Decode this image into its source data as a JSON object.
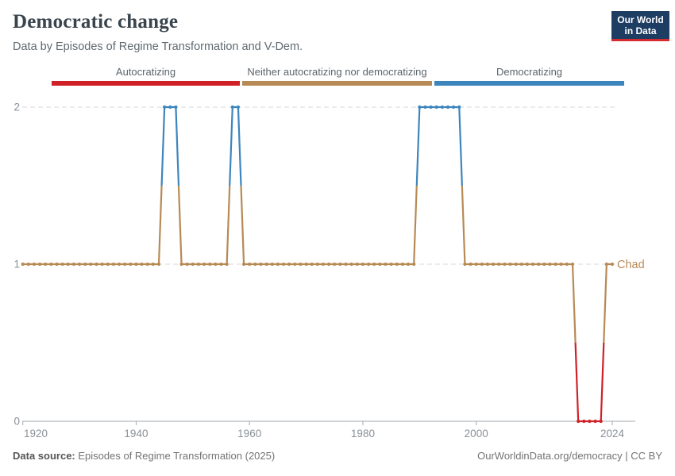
{
  "header": {
    "title": "Democratic change",
    "subtitle": "Data by Episodes of Regime Transformation and V-Dem."
  },
  "logo": {
    "line1": "Our World",
    "line2": "in Data",
    "bg_color": "#1d3d63",
    "accent_color": "#d42b2f"
  },
  "legend": {
    "items": [
      {
        "label": "Autocratizing",
        "color": "#d02128"
      },
      {
        "label": "Neither autocratizing nor democratizing",
        "color": "#b78a55"
      },
      {
        "label": "Democratizing",
        "color": "#3d85bd"
      }
    ]
  },
  "chart_data": {
    "type": "line",
    "title": "Democratic change",
    "series_name": "Chad",
    "end_label": "Chad",
    "x_range": [
      1920,
      2024
    ],
    "x_ticks": [
      1920,
      1940,
      1960,
      1980,
      2000,
      2024
    ],
    "y_ticks": [
      0,
      1,
      2
    ],
    "ylim": [
      0,
      2
    ],
    "grid": "dashed horizontal gridlines at y=1 and y=2, solid axis at y=0",
    "value_categories": {
      "0": "Autocratizing",
      "1": "Neither autocratizing nor democratizing",
      "2": "Democratizing"
    },
    "value_colors": {
      "0": "#d02128",
      "1": "#b78a55",
      "2": "#3d85bd"
    },
    "segments": [
      {
        "from": 1920,
        "to": 1944,
        "value": 1
      },
      {
        "from": 1945,
        "to": 1947,
        "value": 2
      },
      {
        "from": 1948,
        "to": 1956,
        "value": 1
      },
      {
        "from": 1957,
        "to": 1958,
        "value": 2
      },
      {
        "from": 1959,
        "to": 1989,
        "value": 1
      },
      {
        "from": 1990,
        "to": 1997,
        "value": 2
      },
      {
        "from": 1998,
        "to": 2017,
        "value": 1
      },
      {
        "from": 2018,
        "to": 2022,
        "value": 0
      },
      {
        "from": 2023,
        "to": 2024,
        "value": 1
      }
    ]
  },
  "footer": {
    "source_label": "Data source:",
    "source_text": " Episodes of Regime Transformation (2025)",
    "right_text": "OurWorldinData.org/democracy | CC BY"
  }
}
